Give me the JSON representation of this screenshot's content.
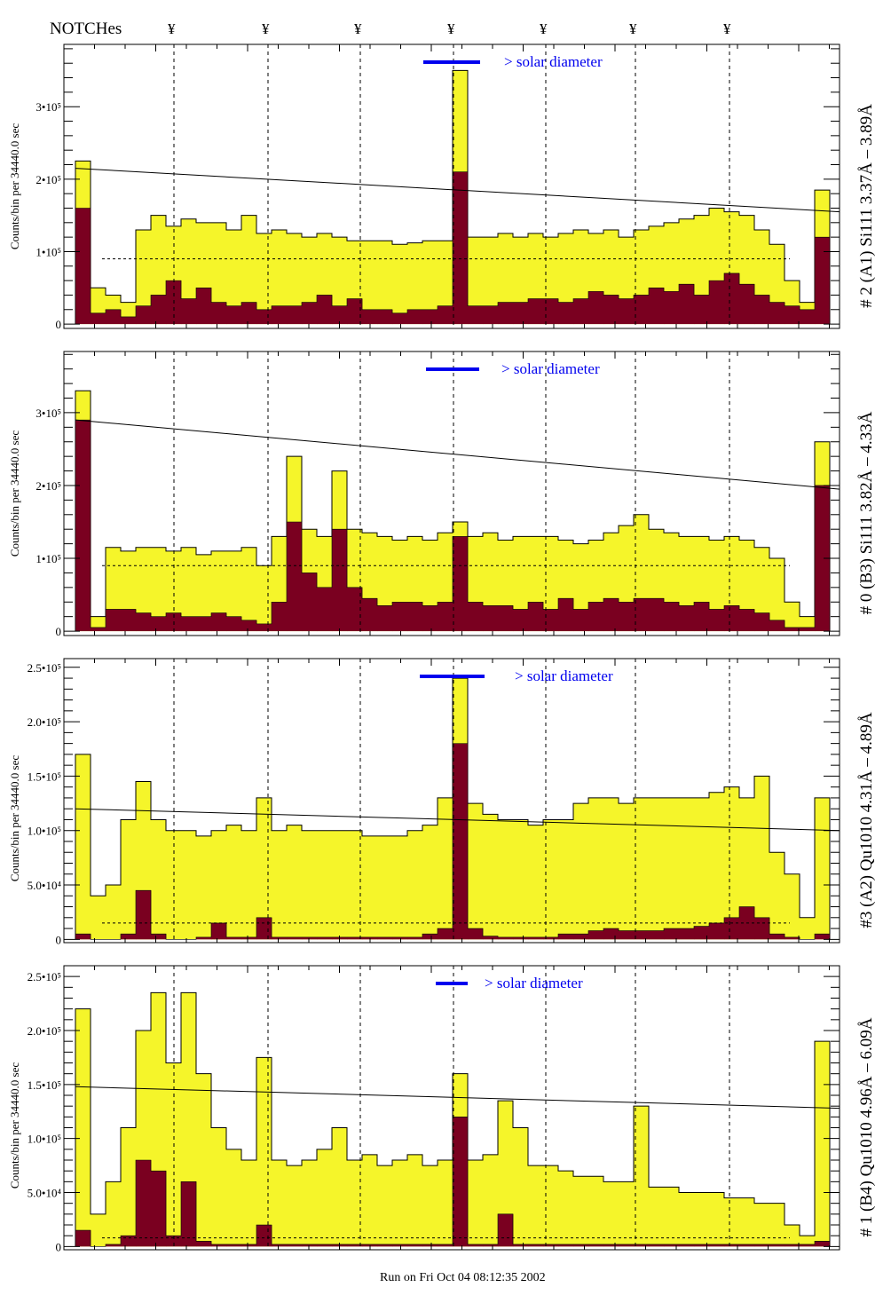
{
  "header": {
    "title": "NOTCHes",
    "notch_marker": "¥"
  },
  "footer": {
    "run_text": "Run on Fri Oct 04 08:12:35 2002"
  },
  "colors": {
    "total": "#f5f52a",
    "selected": "#7a0020",
    "solar_bar": "#0000ee",
    "annotation_blue": "#0000ee"
  },
  "chart_data": [
    {
      "type": "bar",
      "title": "# 2 (A1) Si111  3.37Å – 3.89Å",
      "ylabel": "Counts/bin per  34440.0 sec",
      "annotation": "> solar diameter",
      "ylim": [
        -6000,
        386000
      ],
      "yticks": [
        0,
        100000,
        200000,
        300000
      ],
      "ytick_labels": [
        "0",
        "1•10⁵",
        "2•10⁵",
        "3•10⁵"
      ],
      "unit_scale": 1000,
      "series": [
        {
          "values": [
            225,
            50,
            40,
            30,
            130,
            150,
            135,
            145,
            140,
            140,
            130,
            150,
            125,
            130,
            125,
            120,
            125,
            120,
            115,
            115,
            115,
            110,
            112,
            115,
            115,
            350,
            120,
            120,
            125,
            120,
            125,
            120,
            125,
            130,
            125,
            130,
            120,
            130,
            135,
            140,
            145,
            150,
            160,
            155,
            150,
            130,
            110,
            60,
            30,
            185
          ]
        },
        {
          "values": [
            160,
            15,
            20,
            10,
            25,
            40,
            60,
            35,
            50,
            30,
            25,
            30,
            20,
            25,
            25,
            30,
            40,
            25,
            35,
            20,
            20,
            15,
            20,
            20,
            25,
            210,
            25,
            25,
            30,
            30,
            35,
            35,
            30,
            35,
            45,
            40,
            35,
            40,
            50,
            45,
            55,
            40,
            60,
            70,
            55,
            40,
            30,
            25,
            20,
            120
          ]
        }
      ],
      "trend_line": [
        215,
        155
      ],
      "dashed_level": 90
    },
    {
      "type": "bar",
      "title": "# 0 (B3) Si111  3.82Å – 4.33Å",
      "ylabel": "Counts/bin per  34440.0 sec",
      "annotation": "> solar diameter",
      "ylim": [
        -6000,
        384000
      ],
      "yticks": [
        0,
        100000,
        200000,
        300000
      ],
      "ytick_labels": [
        "0",
        "1•10⁵",
        "2•10⁵",
        "3•10⁵"
      ],
      "unit_scale": 1000,
      "series": [
        {
          "values": [
            330,
            20,
            115,
            110,
            115,
            115,
            110,
            115,
            105,
            110,
            110,
            115,
            90,
            130,
            240,
            140,
            130,
            220,
            140,
            135,
            130,
            125,
            130,
            125,
            135,
            150,
            130,
            135,
            125,
            130,
            130,
            130,
            125,
            120,
            125,
            135,
            145,
            160,
            140,
            135,
            130,
            130,
            125,
            130,
            125,
            115,
            100,
            40,
            20,
            260
          ]
        },
        {
          "values": [
            290,
            5,
            30,
            30,
            25,
            20,
            25,
            20,
            20,
            25,
            20,
            15,
            10,
            40,
            150,
            80,
            60,
            140,
            60,
            45,
            35,
            40,
            40,
            35,
            40,
            130,
            40,
            35,
            35,
            30,
            40,
            30,
            45,
            30,
            40,
            45,
            40,
            45,
            45,
            40,
            35,
            40,
            30,
            35,
            30,
            25,
            15,
            5,
            5,
            200
          ]
        }
      ],
      "trend_line": [
        290,
        195
      ],
      "dashed_level": 90
    },
    {
      "type": "bar",
      "title": "#3 (A2) Qu1010  4.31Å – 4.89Å",
      "ylabel": "Counts/bin per  34440.0 sec",
      "annotation": "> solar diameter",
      "ylim": [
        -3000,
        258000
      ],
      "yticks": [
        0,
        50000,
        100000,
        150000,
        200000,
        250000
      ],
      "ytick_labels": [
        "0",
        "5.0•10⁴",
        "1.0•10⁵",
        "1.5•10⁵",
        "2.0•10⁵",
        "2.5•10⁵"
      ],
      "unit_scale": 1000,
      "series": [
        {
          "values": [
            170,
            40,
            50,
            110,
            145,
            110,
            100,
            100,
            95,
            100,
            105,
            100,
            130,
            100,
            105,
            100,
            100,
            100,
            100,
            95,
            95,
            95,
            100,
            105,
            130,
            240,
            125,
            115,
            110,
            110,
            105,
            110,
            110,
            125,
            130,
            130,
            125,
            130,
            130,
            130,
            130,
            130,
            135,
            140,
            130,
            150,
            80,
            60,
            20,
            130
          ]
        },
        {
          "values": [
            5,
            0,
            0,
            5,
            45,
            5,
            0,
            0,
            2,
            15,
            2,
            2,
            20,
            2,
            2,
            2,
            2,
            2,
            2,
            2,
            2,
            2,
            2,
            5,
            10,
            180,
            10,
            3,
            2,
            2,
            2,
            2,
            5,
            5,
            8,
            10,
            8,
            8,
            8,
            10,
            10,
            12,
            15,
            20,
            30,
            20,
            5,
            2,
            0,
            5
          ]
        }
      ],
      "trend_line": [
        120,
        100
      ],
      "dashed_level": 15
    },
    {
      "type": "bar",
      "title": "# 1 (B4) Qu1010 4.96Å – 6.09Å",
      "ylabel": "Counts/bin per  34440.0 sec",
      "annotation": "> solar diameter",
      "ylim": [
        -3000,
        260000
      ],
      "yticks": [
        0,
        50000,
        100000,
        150000,
        200000,
        250000
      ],
      "ytick_labels": [
        "0",
        "5.0•10⁴",
        "1.0•10⁵",
        "1.5•10⁵",
        "2.0•10⁵",
        "2.5•10⁵"
      ],
      "unit_scale": 1000,
      "series": [
        {
          "values": [
            220,
            30,
            60,
            110,
            200,
            235,
            170,
            235,
            160,
            110,
            90,
            80,
            175,
            80,
            75,
            80,
            90,
            110,
            80,
            85,
            75,
            80,
            85,
            75,
            80,
            160,
            80,
            85,
            135,
            110,
            75,
            75,
            70,
            65,
            65,
            60,
            60,
            130,
            55,
            55,
            50,
            50,
            50,
            45,
            45,
            40,
            40,
            20,
            10,
            190
          ]
        },
        {
          "values": [
            15,
            0,
            2,
            10,
            80,
            70,
            10,
            60,
            5,
            2,
            2,
            2,
            20,
            2,
            2,
            2,
            2,
            2,
            2,
            2,
            2,
            2,
            2,
            2,
            2,
            120,
            2,
            2,
            30,
            2,
            2,
            2,
            2,
            2,
            2,
            2,
            2,
            2,
            2,
            2,
            2,
            2,
            2,
            2,
            2,
            2,
            2,
            2,
            2,
            5
          ]
        }
      ],
      "trend_line": [
        148,
        128
      ],
      "dashed_level": 8
    }
  ]
}
